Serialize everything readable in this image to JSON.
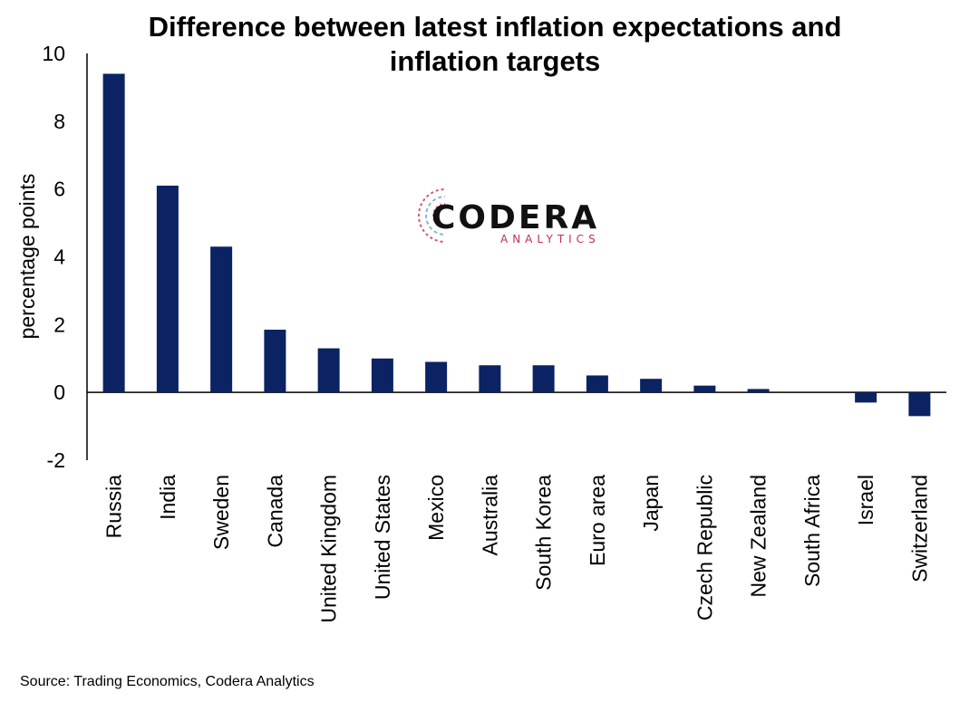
{
  "chart_data": {
    "type": "bar",
    "title_line1": "Difference between latest inflation expectations and",
    "title_line2": "inflation targets",
    "ylabel": "percentage points",
    "xlabel": "",
    "ylim": [
      -2,
      10
    ],
    "yticks": [
      "10",
      "8",
      "6",
      "4",
      "2",
      "0",
      "-2"
    ],
    "ytick_values": [
      10,
      8,
      6,
      4,
      2,
      0,
      -2
    ],
    "categories": [
      "Russia",
      "India",
      "Sweden",
      "Canada",
      "United Kingdom",
      "United States",
      "Mexico",
      "Australia",
      "South Korea",
      "Euro area",
      "Japan",
      "Czech Republic",
      "New Zealand",
      "South Africa",
      "Israel",
      "Switzerland"
    ],
    "values": [
      9.4,
      6.1,
      4.3,
      1.85,
      1.3,
      1.0,
      0.9,
      0.8,
      0.8,
      0.5,
      0.4,
      0.2,
      0.1,
      0.0,
      -0.3,
      -0.7
    ],
    "bar_color": "#0b2263",
    "grid": false,
    "legend": "none"
  },
  "logo": {
    "main": "CODERA",
    "sub": "ANALYTICS",
    "sub_color": "#c0314f"
  },
  "source": "Source: Trading Economics, Codera Analytics"
}
